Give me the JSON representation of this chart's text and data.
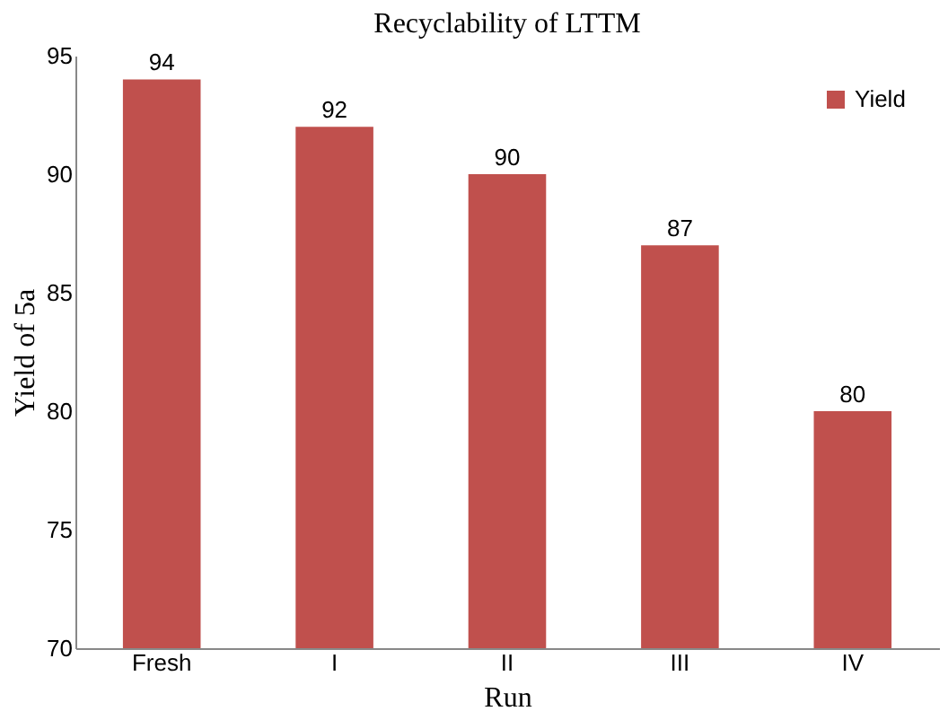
{
  "chart_data": {
    "type": "bar",
    "title": "Recyclability of LTTM",
    "xlabel": "Run",
    "ylabel": "Yield of 5a",
    "categories": [
      "Fresh",
      "I",
      "II",
      "III",
      "IV"
    ],
    "series": [
      {
        "name": "Yield",
        "color": "#c0504d",
        "values": [
          94,
          92,
          90,
          87,
          80
        ]
      }
    ],
    "ylim": [
      70,
      95
    ],
    "yticks": [
      70,
      75,
      80,
      85,
      90,
      95
    ],
    "grid": false,
    "legend": "top right",
    "data_labels": true
  }
}
